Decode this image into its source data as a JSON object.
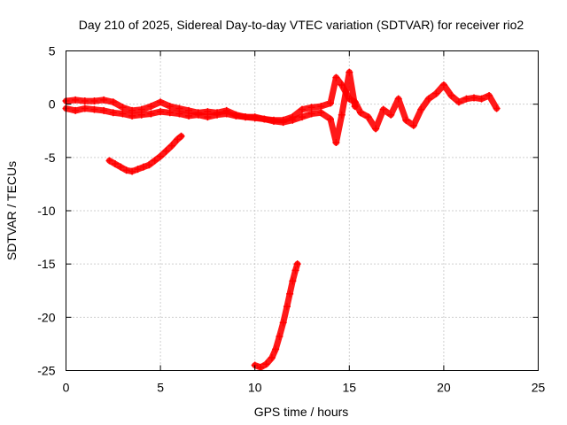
{
  "chart_data": {
    "type": "scatter",
    "title": "Day 210 of 2025, Sidereal Day-to-day VTEC variation (SDTVAR) for receiver rio2",
    "xlabel": "GPS time / hours",
    "ylabel": "SDTVAR / TECUs",
    "xlim": [
      0,
      25
    ],
    "ylim": [
      -25,
      5
    ],
    "xticks": [
      0,
      5,
      10,
      15,
      20,
      25
    ],
    "yticks": [
      5,
      0,
      -5,
      -10,
      -15,
      -20,
      -25
    ],
    "grid": true,
    "marker": "plus",
    "series_color": "#ff0000",
    "series": [
      {
        "name": "track-a",
        "x": [
          0.0,
          0.5,
          1.0,
          1.5,
          2.0,
          2.5,
          3.0,
          3.5,
          4.0,
          4.5,
          5.0,
          5.5,
          6.0,
          6.5,
          7.0,
          7.5,
          8.0,
          8.5,
          9.0,
          9.5,
          10.0,
          10.5,
          11.0,
          11.5,
          12.0,
          12.5,
          13.0,
          13.5,
          14.0,
          14.3,
          14.6,
          15.0,
          15.3,
          15.6,
          16.0,
          16.4,
          16.8,
          17.2,
          17.6,
          18.0,
          18.4,
          18.8,
          19.2,
          19.6,
          20.0,
          20.4,
          20.8,
          21.2,
          21.6,
          22.0,
          22.4,
          22.8
        ],
        "y": [
          0.3,
          0.4,
          0.3,
          0.3,
          0.4,
          0.2,
          -0.3,
          -0.6,
          -0.5,
          -0.2,
          0.2,
          -0.2,
          -0.4,
          -0.6,
          -0.8,
          -0.7,
          -0.8,
          -0.6,
          -1.0,
          -1.2,
          -1.2,
          -1.4,
          -1.5,
          -1.5,
          -1.2,
          -0.5,
          -0.3,
          -0.2,
          0.1,
          2.5,
          1.8,
          0.5,
          0.2,
          -0.8,
          -1.2,
          -2.3,
          -0.5,
          -1.0,
          0.5,
          -1.5,
          -2.0,
          -0.5,
          0.5,
          1.0,
          1.8,
          0.8,
          0.2,
          0.5,
          0.6,
          0.5,
          0.8,
          -0.4
        ]
      },
      {
        "name": "track-b",
        "x": [
          0.0,
          0.5,
          1.0,
          1.5,
          2.0,
          2.5,
          3.0,
          3.5,
          4.0,
          4.5,
          5.0,
          5.5,
          6.0,
          6.5,
          7.0,
          7.5,
          8.0,
          8.5,
          9.0,
          9.5,
          10.0,
          10.5,
          11.0,
          11.5,
          12.0,
          12.5,
          13.0,
          13.5,
          14.0,
          14.3,
          14.6,
          15.0,
          15.3
        ],
        "y": [
          -0.4,
          -0.6,
          -0.4,
          -0.5,
          -0.6,
          -0.8,
          -0.9,
          -1.1,
          -1.0,
          -0.9,
          -0.7,
          -0.8,
          -0.9,
          -1.1,
          -1.0,
          -1.2,
          -1.0,
          -0.9,
          -1.1,
          -1.2,
          -1.3,
          -1.4,
          -1.6,
          -1.7,
          -1.5,
          -1.2,
          -0.9,
          -0.8,
          -1.4,
          -3.6,
          -1.0,
          3.0,
          -0.2
        ]
      },
      {
        "name": "track-c",
        "x": [
          2.3,
          2.6,
          2.9,
          3.2,
          3.5,
          3.8,
          4.1,
          4.4,
          4.7,
          5.0,
          5.3,
          5.6,
          5.9,
          6.1
        ],
        "y": [
          -5.3,
          -5.6,
          -5.9,
          -6.2,
          -6.3,
          -6.1,
          -5.9,
          -5.7,
          -5.3,
          -4.9,
          -4.4,
          -3.9,
          -3.3,
          -3.0
        ]
      },
      {
        "name": "track-d",
        "x": [
          10.0,
          10.3,
          10.6,
          10.9,
          11.1,
          11.3,
          11.5,
          11.7,
          11.85,
          12.0,
          12.15,
          12.25
        ],
        "y": [
          -24.5,
          -24.7,
          -24.4,
          -23.8,
          -23.0,
          -21.8,
          -20.5,
          -19.0,
          -17.8,
          -16.6,
          -15.6,
          -15.0
        ]
      }
    ]
  }
}
